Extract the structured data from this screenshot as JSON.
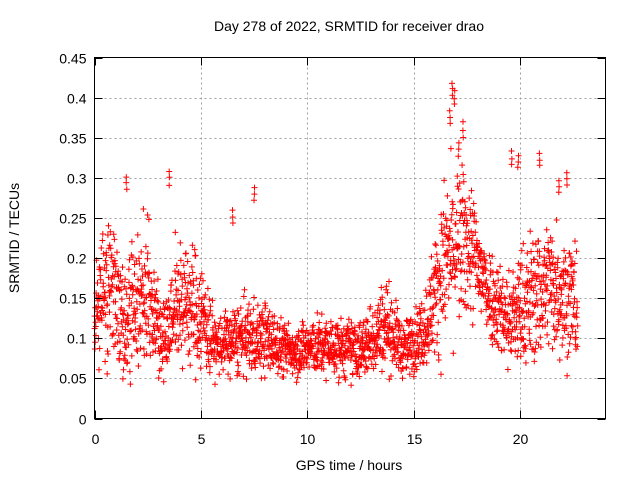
{
  "chart_data": {
    "type": "scatter",
    "title": "Day 278 of 2022, SRMTID for receiver drao",
    "xlabel": "GPS time / hours",
    "ylabel": "SRMTID / TECUs",
    "xlim": [
      0,
      24
    ],
    "ylim": [
      0,
      0.45
    ],
    "xticks": [
      0,
      5,
      10,
      15,
      20
    ],
    "xtick_labels": [
      "0",
      "5",
      "10",
      "15",
      "20"
    ],
    "yticks": [
      0,
      0.05,
      0.1,
      0.15,
      0.2,
      0.25,
      0.3,
      0.35,
      0.4,
      0.45
    ],
    "ytick_labels": [
      "0",
      "0.05",
      "0.1",
      "0.15",
      "0.2",
      "0.25",
      "0.3",
      "0.35",
      "0.4",
      "0.45"
    ],
    "grid": true,
    "marker": "+",
    "color": "#ff0000",
    "series": [
      {
        "name": "SRMTID",
        "profile": [
          {
            "x": 0.0,
            "y": 0.13,
            "spread": 0.06
          },
          {
            "x": 0.8,
            "y": 0.17,
            "spread": 0.09
          },
          {
            "x": 1.5,
            "y": 0.13,
            "spread": 0.08
          },
          {
            "x": 2.5,
            "y": 0.16,
            "spread": 0.1
          },
          {
            "x": 3.2,
            "y": 0.1,
            "spread": 0.05
          },
          {
            "x": 4.0,
            "y": 0.15,
            "spread": 0.09
          },
          {
            "x": 5.0,
            "y": 0.13,
            "spread": 0.08
          },
          {
            "x": 5.7,
            "y": 0.09,
            "spread": 0.04
          },
          {
            "x": 7.0,
            "y": 0.1,
            "spread": 0.05
          },
          {
            "x": 8.0,
            "y": 0.1,
            "spread": 0.05
          },
          {
            "x": 9.0,
            "y": 0.085,
            "spread": 0.035
          },
          {
            "x": 10.5,
            "y": 0.09,
            "spread": 0.04
          },
          {
            "x": 12.5,
            "y": 0.085,
            "spread": 0.04
          },
          {
            "x": 13.7,
            "y": 0.12,
            "spread": 0.06
          },
          {
            "x": 14.5,
            "y": 0.085,
            "spread": 0.035
          },
          {
            "x": 15.5,
            "y": 0.11,
            "spread": 0.05
          },
          {
            "x": 16.5,
            "y": 0.2,
            "spread": 0.11
          },
          {
            "x": 17.5,
            "y": 0.22,
            "spread": 0.1
          },
          {
            "x": 18.5,
            "y": 0.16,
            "spread": 0.06
          },
          {
            "x": 19.5,
            "y": 0.12,
            "spread": 0.07
          },
          {
            "x": 20.5,
            "y": 0.15,
            "spread": 0.09
          },
          {
            "x": 21.5,
            "y": 0.17,
            "spread": 0.09
          },
          {
            "x": 22.7,
            "y": 0.14,
            "spread": 0.09
          }
        ],
        "outliers": [
          {
            "x": 1.5,
            "y": 0.303
          },
          {
            "x": 3.5,
            "y": 0.31
          },
          {
            "x": 6.5,
            "y": 0.263
          },
          {
            "x": 7.5,
            "y": 0.291
          },
          {
            "x": 16.8,
            "y": 0.42
          },
          {
            "x": 16.9,
            "y": 0.41
          },
          {
            "x": 16.7,
            "y": 0.385
          },
          {
            "x": 17.3,
            "y": 0.37
          },
          {
            "x": 17.1,
            "y": 0.345
          },
          {
            "x": 19.6,
            "y": 0.335
          },
          {
            "x": 19.9,
            "y": 0.33
          },
          {
            "x": 20.9,
            "y": 0.333
          },
          {
            "x": 22.2,
            "y": 0.31
          },
          {
            "x": 21.8,
            "y": 0.3
          }
        ]
      }
    ]
  }
}
